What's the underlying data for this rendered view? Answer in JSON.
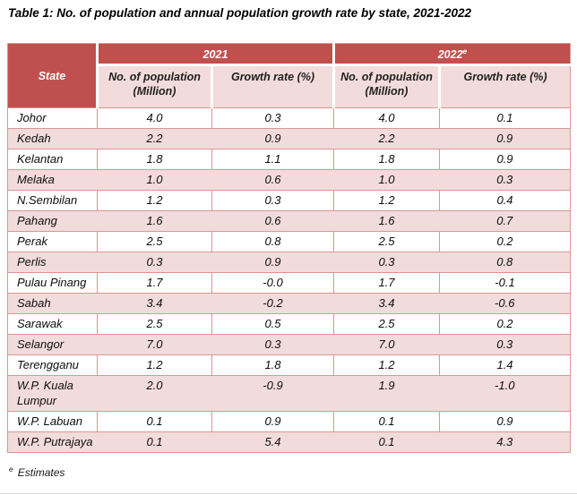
{
  "title": "Table 1: No. of population and annual population growth rate by state, 2021-2022",
  "table": {
    "state_header": "State",
    "year_groups": [
      {
        "label": "2021",
        "sup": ""
      },
      {
        "label": "2022",
        "sup": "e"
      }
    ],
    "sub_headers": [
      "No. of population (Million)",
      "Growth rate (%)",
      "No. of population (Million)",
      "Growth rate (%)"
    ],
    "rows": [
      {
        "state": "Johor",
        "values": [
          "4.0",
          "0.3",
          "4.0",
          "0.1"
        ]
      },
      {
        "state": "Kedah",
        "values": [
          "2.2",
          "0.9",
          "2.2",
          "0.9"
        ]
      },
      {
        "state": "Kelantan",
        "values": [
          "1.8",
          "1.1",
          "1.8",
          "0.9"
        ]
      },
      {
        "state": "Melaka",
        "values": [
          "1.0",
          "0.6",
          "1.0",
          "0.3"
        ]
      },
      {
        "state": "N.Sembilan",
        "values": [
          "1.2",
          "0.3",
          "1.2",
          "0.4"
        ]
      },
      {
        "state": "Pahang",
        "values": [
          "1.6",
          "0.6",
          "1.6",
          "0.7"
        ]
      },
      {
        "state": "Perak",
        "values": [
          "2.5",
          "0.8",
          "2.5",
          "0.2"
        ]
      },
      {
        "state": "Perlis",
        "values": [
          "0.3",
          "0.9",
          "0.3",
          "0.8"
        ]
      },
      {
        "state": "Pulau Pinang",
        "values": [
          "1.7",
          "-0.0",
          "1.7",
          "-0.1"
        ]
      },
      {
        "state": "Sabah",
        "values": [
          "3.4",
          "-0.2",
          "3.4",
          "-0.6"
        ]
      },
      {
        "state": "Sarawak",
        "values": [
          "2.5",
          "0.5",
          "2.5",
          "0.2"
        ]
      },
      {
        "state": "Selangor",
        "values": [
          "7.0",
          "0.3",
          "7.0",
          "0.3"
        ]
      },
      {
        "state": "Terengganu",
        "values": [
          "1.2",
          "1.8",
          "1.2",
          "1.4"
        ]
      },
      {
        "state": "W.P. Kuala Lumpur",
        "values": [
          "2.0",
          "-0.9",
          "1.9",
          "-1.0"
        ]
      },
      {
        "state": "W.P. Labuan",
        "values": [
          "0.1",
          "0.9",
          "0.1",
          "0.9"
        ]
      },
      {
        "state": "W.P. Putrajaya",
        "values": [
          "0.1",
          "5.4",
          "0.1",
          "4.3"
        ]
      }
    ]
  },
  "footnote": {
    "marker": "e",
    "text": "Estimates"
  },
  "colors": {
    "header_red": "#C0504D",
    "band_pink": "#F2DCDB",
    "border_light_red": "#D99694"
  }
}
